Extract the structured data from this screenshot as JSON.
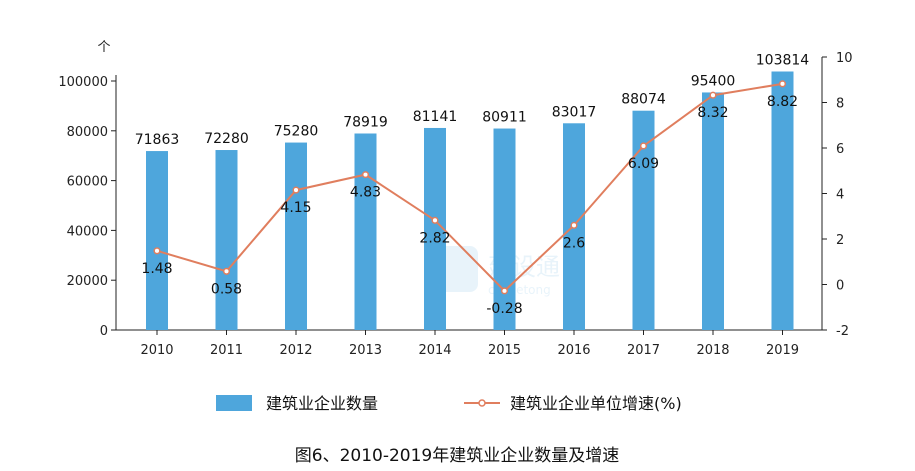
{
  "chart_data": {
    "type": "bar",
    "categories": [
      "2010",
      "2011",
      "2012",
      "2013",
      "2014",
      "2015",
      "2016",
      "2017",
      "2018",
      "2019"
    ],
    "series": [
      {
        "name": "建筑业企业数量",
        "type": "bar",
        "axis": "left",
        "color": "#4ea6dc",
        "values": [
          71863,
          72280,
          75280,
          78919,
          81141,
          80911,
          83017,
          88074,
          95400,
          103814
        ]
      },
      {
        "name": "建筑业企业单位增速(%)",
        "type": "line",
        "axis": "right",
        "color": "#e07e5e",
        "values": [
          1.48,
          0.58,
          4.15,
          4.83,
          2.82,
          -0.28,
          2.6,
          6.09,
          8.32,
          8.82
        ]
      }
    ],
    "y_left": {
      "min": 0,
      "max": 100000,
      "ticks": [
        0,
        20000,
        40000,
        60000,
        80000,
        100000
      ],
      "unit_label": "个"
    },
    "y_right": {
      "min": -2,
      "max": 10,
      "ticks": [
        -2,
        0,
        2,
        4,
        6,
        8,
        10
      ]
    },
    "title": "图6、2010-2019年建筑业企业数量及增速",
    "legend_position": "bottom",
    "grid": false
  },
  "watermark": {
    "name": "建设通",
    "sub": "cbshetong"
  }
}
